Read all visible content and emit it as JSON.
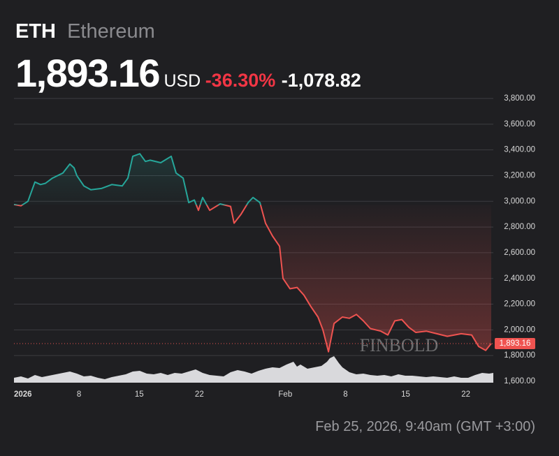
{
  "chart_data": {
    "type": "line",
    "symbol": "ETH",
    "name": "Ethereum",
    "price": "1,893.16",
    "currency": "USD",
    "change_percent": "-36.30%",
    "change": "-1,078.82",
    "watermark": "FINBOLD",
    "timestamp": "Feb 25, 2026, 9:40am (GMT +3:00)",
    "x": [
      -0.57,
      0.24,
      1.06,
      1.87,
      2.52,
      3.09,
      3.9,
      5.12,
      5.93,
      6.42,
      6.75,
      7.56,
      8.37,
      9.59,
      10.81,
      12.03,
      12.68,
      13.25,
      14.07,
      14.72,
      15.28,
      16.5,
      17.72,
      18.29,
      19.11,
      19.76,
      20.41,
      20.89,
      21.38,
      22.2,
      23.41,
      24.63,
      25.04,
      25.85,
      26.67,
      27.24,
      28.05,
      28.7,
      29.51,
      30.33,
      30.73,
      31.54,
      32.36,
      33.17,
      33.98,
      34.8,
      35.37,
      36.02,
      36.67,
      37.64,
      38.46,
      39.27,
      40.08,
      40.89,
      42.11,
      42.93,
      43.74,
      44.55,
      45.37,
      46.18,
      47.4,
      48.62,
      49.84,
      51.46,
      52.68,
      53.5,
      54.31,
      54.96
    ],
    "values": [
      2975,
      2965,
      3000,
      3150,
      3130,
      3140,
      3180,
      3220,
      3290,
      3260,
      3200,
      3120,
      3090,
      3100,
      3130,
      3120,
      3180,
      3350,
      3370,
      3310,
      3320,
      3300,
      3350,
      3220,
      3180,
      2990,
      3010,
      2930,
      3030,
      2930,
      2980,
      2960,
      2830,
      2900,
      2990,
      3030,
      2990,
      2830,
      2730,
      2650,
      2400,
      2320,
      2330,
      2270,
      2180,
      2100,
      2000,
      1830,
      2050,
      2100,
      2090,
      2120,
      2070,
      2010,
      1990,
      1960,
      2070,
      2080,
      2020,
      1980,
      1990,
      1970,
      1950,
      1970,
      1960,
      1870,
      1840,
      1893.16
    ],
    "color_above": "#26a69a",
    "color_below": "#ef5350",
    "price_tag": {
      "value": 1893.16,
      "label": "1,893.16"
    },
    "xlim": [
      -0.57,
      55.2
    ],
    "xticks": [
      {
        "value": 0,
        "label": "2026"
      },
      {
        "value": 7,
        "label": "8"
      },
      {
        "value": 14,
        "label": "15"
      },
      {
        "value": 21,
        "label": "22"
      },
      {
        "value": 31,
        "label": "Feb"
      },
      {
        "value": 38,
        "label": "8"
      },
      {
        "value": 45,
        "label": "15"
      },
      {
        "value": 52,
        "label": "22"
      }
    ],
    "ylim": [
      1600,
      3800
    ],
    "yticks": [
      {
        "value": 1600,
        "label": "1,600.00"
      },
      {
        "value": 1800,
        "label": "1,800.00"
      },
      {
        "value": 2000,
        "label": "2,000.00"
      },
      {
        "value": 2200,
        "label": "2,200.00"
      },
      {
        "value": 2400,
        "label": "2,400.00"
      },
      {
        "value": 2600,
        "label": "2,600.00"
      },
      {
        "value": 2800,
        "label": "2,800.00"
      },
      {
        "value": 3000,
        "label": "3,000.00"
      },
      {
        "value": 3200,
        "label": "3,200.00"
      },
      {
        "value": 3400,
        "label": "3,400.00"
      },
      {
        "value": 3600,
        "label": "3,600.00"
      },
      {
        "value": 3800,
        "label": "3,800.00"
      }
    ],
    "grid": true
  }
}
